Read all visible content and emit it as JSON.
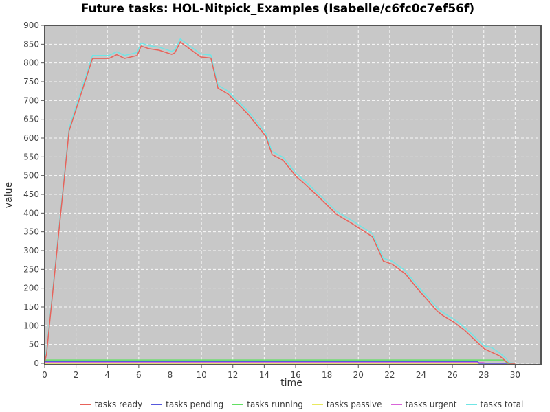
{
  "title": "Future tasks: HOL-Nitpick_Examples (Isabelle/c6fc0c7ef56f)",
  "chart_data": {
    "type": "line",
    "title": "Future tasks: HOL-Nitpick_Examples (Isabelle/c6fc0c7ef56f)",
    "xlabel": "time",
    "ylabel": "value",
    "xlim": [
      0,
      31.65
    ],
    "ylim": [
      0,
      900
    ],
    "x_ticks": [
      0,
      2,
      4,
      6,
      8,
      10,
      12,
      14,
      16,
      18,
      20,
      22,
      24,
      26,
      28,
      30
    ],
    "y_ticks": [
      0,
      50,
      100,
      150,
      200,
      250,
      300,
      350,
      400,
      450,
      500,
      550,
      600,
      650,
      700,
      750,
      800,
      850,
      900
    ],
    "grid": true,
    "legend_position": "bottom",
    "plot_background": "#c8c8c8",
    "grid_color": "#ffffff",
    "border_color": "#555555",
    "tick_label_color": "#444444",
    "axis_title_color": "#333333",
    "draw_order": [
      "tasks passive",
      "tasks urgent",
      "tasks pending",
      "tasks running",
      "tasks total",
      "tasks ready"
    ],
    "series": [
      {
        "name": "tasks ready",
        "color": "#e8625a",
        "points": [
          [
            0,
            2
          ],
          [
            0.12,
            25
          ],
          [
            1.55,
            618
          ],
          [
            3.05,
            812
          ],
          [
            4.1,
            812
          ],
          [
            4.6,
            822
          ],
          [
            5.1,
            812
          ],
          [
            5.9,
            820
          ],
          [
            6.15,
            845
          ],
          [
            6.65,
            838
          ],
          [
            7.3,
            834
          ],
          [
            8.1,
            823
          ],
          [
            8.3,
            827
          ],
          [
            8.65,
            856
          ],
          [
            9.95,
            816
          ],
          [
            10.6,
            813
          ],
          [
            11.05,
            733
          ],
          [
            11.7,
            717
          ],
          [
            13.0,
            662
          ],
          [
            14.1,
            605
          ],
          [
            14.5,
            556
          ],
          [
            15.2,
            541
          ],
          [
            16.05,
            497
          ],
          [
            16.5,
            481
          ],
          [
            17.7,
            434
          ],
          [
            18.6,
            397
          ],
          [
            19.6,
            372
          ],
          [
            20.9,
            337
          ],
          [
            21.6,
            272
          ],
          [
            22.15,
            264
          ],
          [
            23.0,
            238
          ],
          [
            23.9,
            192
          ],
          [
            24.15,
            181
          ],
          [
            25.05,
            138
          ],
          [
            25.4,
            127
          ],
          [
            26.1,
            109
          ],
          [
            26.8,
            87
          ],
          [
            27.8,
            47
          ],
          [
            28.05,
            38
          ],
          [
            29.0,
            20
          ],
          [
            29.45,
            4
          ],
          [
            29.6,
            0
          ],
          [
            30,
            0
          ]
        ]
      },
      {
        "name": "tasks pending",
        "color": "#5659dd",
        "points": [
          [
            0,
            5
          ],
          [
            27.6,
            5
          ],
          [
            27.7,
            0
          ],
          [
            30,
            0
          ]
        ]
      },
      {
        "name": "tasks running",
        "color": "#63e063",
        "points": [
          [
            0,
            9
          ],
          [
            29.3,
            9
          ],
          [
            29.5,
            0
          ],
          [
            30,
            0
          ]
        ]
      },
      {
        "name": "tasks passive",
        "color": "#e9e95e",
        "points": [
          [
            0,
            0
          ],
          [
            30,
            0
          ]
        ]
      },
      {
        "name": "tasks urgent",
        "color": "#d964d9",
        "points": [
          [
            0,
            2
          ],
          [
            28.0,
            2
          ],
          [
            28.1,
            0
          ],
          [
            30,
            0
          ]
        ]
      },
      {
        "name": "tasks total",
        "color": "#70e5e5",
        "points": [
          [
            0,
            10
          ],
          [
            0.12,
            33
          ],
          [
            1.55,
            626
          ],
          [
            3.05,
            820
          ],
          [
            4.1,
            820
          ],
          [
            4.6,
            830
          ],
          [
            5.1,
            820
          ],
          [
            5.9,
            828
          ],
          [
            6.15,
            853
          ],
          [
            6.65,
            846
          ],
          [
            7.3,
            842
          ],
          [
            8.1,
            831
          ],
          [
            8.3,
            835
          ],
          [
            8.65,
            864
          ],
          [
            9.95,
            824
          ],
          [
            10.6,
            821
          ],
          [
            11.05,
            741
          ],
          [
            11.7,
            725
          ],
          [
            13.0,
            670
          ],
          [
            14.1,
            613
          ],
          [
            14.5,
            564
          ],
          [
            15.2,
            549
          ],
          [
            16.05,
            505
          ],
          [
            16.5,
            489
          ],
          [
            17.7,
            442
          ],
          [
            18.6,
            405
          ],
          [
            19.6,
            380
          ],
          [
            20.9,
            345
          ],
          [
            21.6,
            280
          ],
          [
            22.15,
            272
          ],
          [
            23.0,
            246
          ],
          [
            23.9,
            200
          ],
          [
            24.15,
            189
          ],
          [
            25.05,
            146
          ],
          [
            25.4,
            135
          ],
          [
            26.1,
            117
          ],
          [
            26.8,
            95
          ],
          [
            27.8,
            55
          ],
          [
            28.05,
            46
          ],
          [
            28.5,
            42
          ],
          [
            29.0,
            28
          ],
          [
            29.45,
            12
          ],
          [
            29.6,
            2
          ],
          [
            30,
            0
          ]
        ]
      }
    ]
  }
}
